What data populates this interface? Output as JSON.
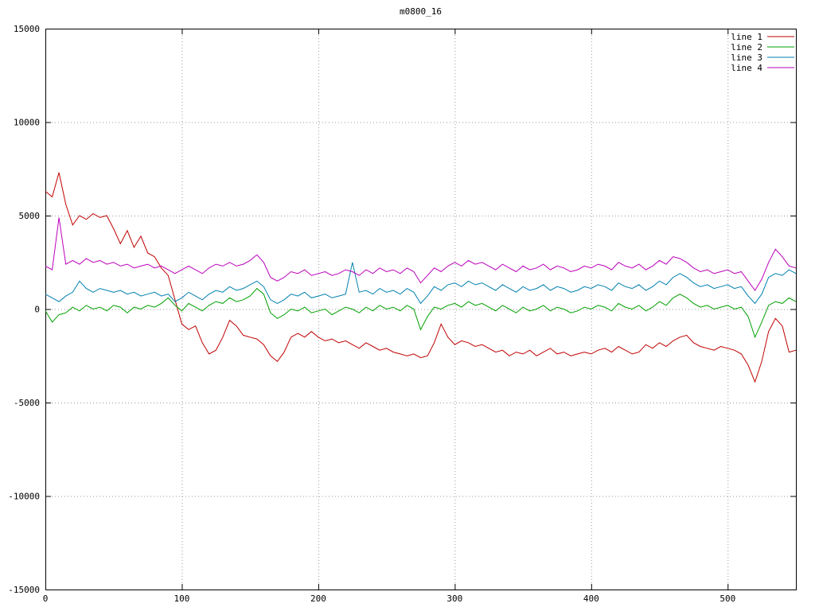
{
  "chart_data": {
    "type": "line",
    "title": "m0800_16",
    "xlabel": "",
    "ylabel": "",
    "xlim": [
      0,
      550
    ],
    "ylim": [
      -15000,
      15000
    ],
    "x_ticks": [
      0,
      100,
      200,
      300,
      400,
      500
    ],
    "y_ticks": [
      -15000,
      -10000,
      -5000,
      0,
      5000,
      10000,
      15000
    ],
    "grid": "dotted",
    "legend_position": "top-right",
    "x_start": 0,
    "x_step": 5,
    "series": [
      {
        "name": "line 1",
        "color": "#c00000",
        "values": [
          6300,
          6000,
          7300,
          5600,
          4500,
          5000,
          4800,
          5100,
          4900,
          5000,
          4300,
          3500,
          4200,
          3300,
          3900,
          3000,
          2800,
          2200,
          1800,
          500,
          -800,
          -1100,
          -900,
          -1800,
          -2400,
          -2200,
          -1500,
          -600,
          -900,
          -1400,
          -1500,
          -1600,
          -1900,
          -2500,
          -2800,
          -2300,
          -1500,
          -1300,
          -1500,
          -1200,
          -1500,
          -1700,
          -1600,
          -1800,
          -1700,
          -1900,
          -2100,
          -1800,
          -2000,
          -2200,
          -2100,
          -2300,
          -2400,
          -2500,
          -2400,
          -2600,
          -2500,
          -1800,
          -800,
          -1500,
          -1900,
          -1700,
          -1800,
          -2000,
          -1900,
          -2100,
          -2300,
          -2200,
          -2500,
          -2300,
          -2400,
          -2200,
          -2500,
          -2300,
          -2100,
          -2400,
          -2300,
          -2500,
          -2400,
          -2300,
          -2400,
          -2200,
          -2100,
          -2300,
          -2000,
          -2200,
          -2400,
          -2300,
          -1900,
          -2100,
          -1800,
          -2000,
          -1700,
          -1500,
          -1400,
          -1800,
          -2000,
          -2100,
          -2200,
          -2000,
          -2100,
          -2200,
          -2400,
          -3000,
          -3900,
          -2800,
          -1200,
          -500,
          -900,
          -2300,
          -2200
        ]
      },
      {
        "name": "line 2",
        "color": "#00a000",
        "values": [
          -100,
          -700,
          -300,
          -200,
          100,
          -100,
          200,
          0,
          100,
          -100,
          200,
          100,
          -200,
          100,
          0,
          200,
          100,
          300,
          600,
          200,
          -100,
          300,
          100,
          -100,
          200,
          400,
          300,
          600,
          400,
          500,
          700,
          1100,
          800,
          -200,
          -500,
          -300,
          0,
          -100,
          100,
          -200,
          -100,
          0,
          -300,
          -100,
          100,
          0,
          -200,
          100,
          -100,
          200,
          0,
          100,
          -100,
          200,
          0,
          -1100,
          -400,
          100,
          0,
          200,
          300,
          100,
          400,
          200,
          300,
          100,
          -100,
          200,
          0,
          -200,
          100,
          -100,
          0,
          200,
          -100,
          100,
          0,
          -200,
          -100,
          100,
          0,
          200,
          100,
          -100,
          300,
          100,
          0,
          200,
          -100,
          100,
          400,
          200,
          600,
          800,
          600,
          300,
          100,
          200,
          0,
          100,
          200,
          0,
          100,
          -400,
          -1500,
          -700,
          200,
          400,
          300,
          600,
          400
        ]
      },
      {
        "name": "line 3",
        "color": "#0080b0",
        "values": [
          800,
          600,
          400,
          700,
          900,
          1500,
          1100,
          900,
          1100,
          1000,
          900,
          1000,
          800,
          900,
          700,
          800,
          900,
          700,
          800,
          400,
          600,
          900,
          700,
          500,
          800,
          1000,
          900,
          1200,
          1000,
          1100,
          1300,
          1500,
          1200,
          500,
          300,
          500,
          800,
          700,
          900,
          600,
          700,
          800,
          600,
          700,
          800,
          2500,
          900,
          1000,
          800,
          1100,
          900,
          1000,
          800,
          1100,
          900,
          300,
          700,
          1200,
          1000,
          1300,
          1400,
          1200,
          1500,
          1300,
          1400,
          1200,
          1000,
          1300,
          1100,
          900,
          1200,
          1000,
          1100,
          1300,
          1000,
          1200,
          1100,
          900,
          1000,
          1200,
          1100,
          1300,
          1200,
          1000,
          1400,
          1200,
          1100,
          1300,
          1000,
          1200,
          1500,
          1300,
          1700,
          1900,
          1700,
          1400,
          1200,
          1300,
          1100,
          1200,
          1300,
          1100,
          1200,
          700,
          300,
          800,
          1700,
          1900,
          1800,
          2100,
          1900
        ]
      },
      {
        "name": "line 4",
        "color": "#bb00bb",
        "values": [
          2300,
          2100,
          4900,
          2400,
          2600,
          2400,
          2700,
          2500,
          2600,
          2400,
          2500,
          2300,
          2400,
          2200,
          2300,
          2400,
          2200,
          2300,
          2100,
          1900,
          2100,
          2300,
          2100,
          1900,
          2200,
          2400,
          2300,
          2500,
          2300,
          2400,
          2600,
          2900,
          2500,
          1700,
          1500,
          1700,
          2000,
          1900,
          2100,
          1800,
          1900,
          2000,
          1800,
          1900,
          2100,
          2000,
          1800,
          2100,
          1900,
          2200,
          2000,
          2100,
          1900,
          2200,
          2000,
          1400,
          1800,
          2200,
          2000,
          2300,
          2500,
          2300,
          2600,
          2400,
          2500,
          2300,
          2100,
          2400,
          2200,
          2000,
          2300,
          2100,
          2200,
          2400,
          2100,
          2300,
          2200,
          2000,
          2100,
          2300,
          2200,
          2400,
          2300,
          2100,
          2500,
          2300,
          2200,
          2400,
          2100,
          2300,
          2600,
          2400,
          2800,
          2700,
          2500,
          2200,
          2000,
          2100,
          1900,
          2000,
          2100,
          1900,
          2000,
          1500,
          1000,
          1600,
          2500,
          3200,
          2800,
          2300,
          2200
        ]
      }
    ]
  }
}
